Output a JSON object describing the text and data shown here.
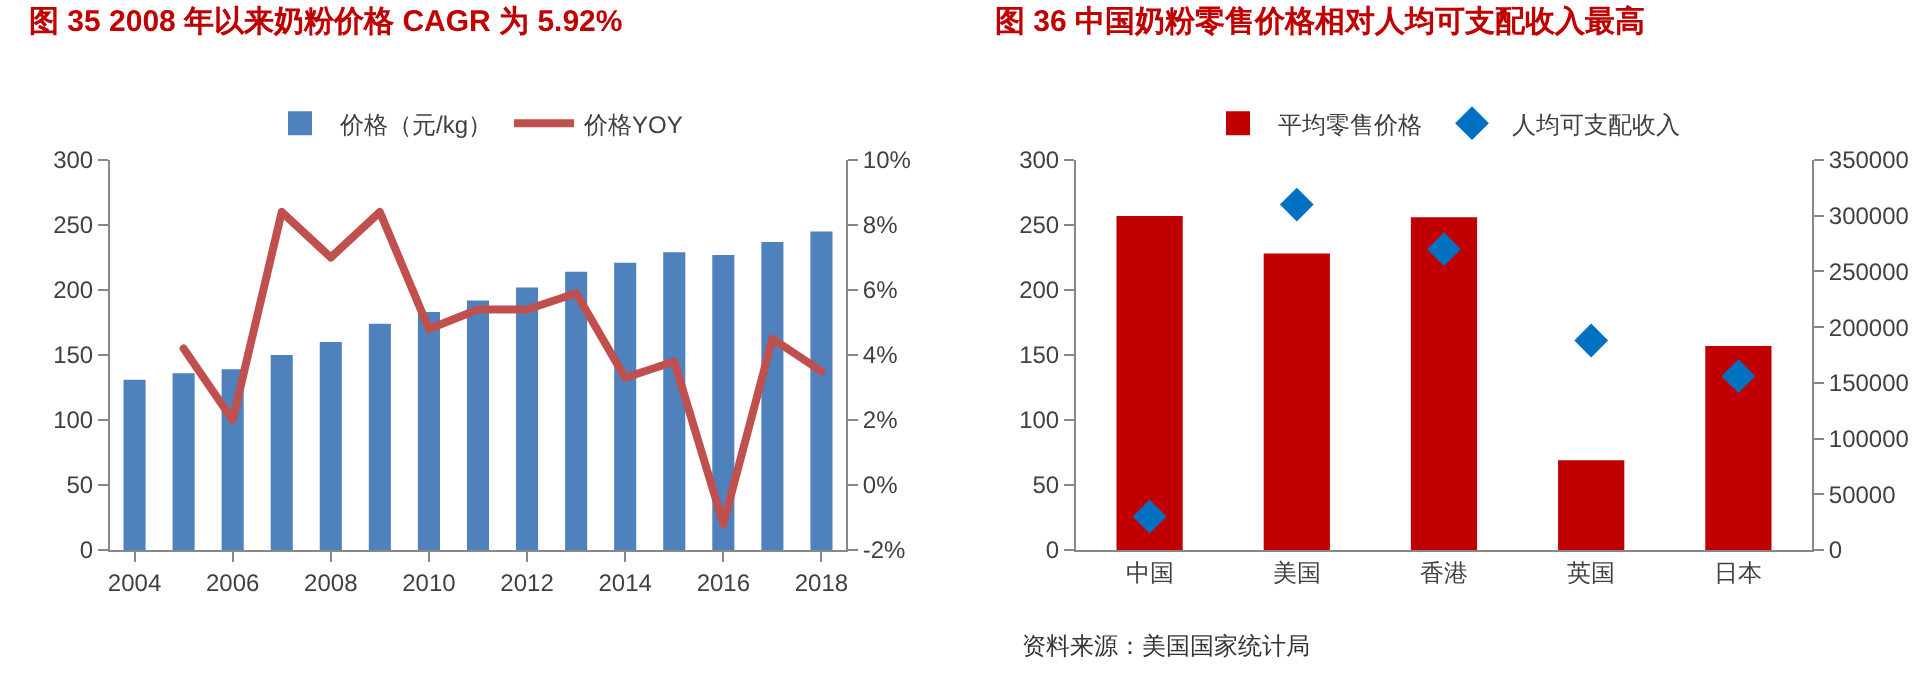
{
  "chart_data": [
    {
      "type": "bar",
      "title": "图 35 2008 年以来奶粉价格 CAGR 为 5.92%",
      "x": [
        2004,
        2005,
        2006,
        2007,
        2008,
        2009,
        2010,
        2011,
        2012,
        2013,
        2014,
        2015,
        2016,
        2017,
        2018
      ],
      "xlim": [
        2003.5,
        2018.5
      ],
      "xticks": [
        2004,
        2006,
        2008,
        2010,
        2012,
        2014,
        2016,
        2018
      ],
      "ylim": [
        0,
        300
      ],
      "yticks": [
        0,
        50,
        100,
        150,
        200,
        250,
        300
      ],
      "y2lim": [
        -2,
        10
      ],
      "y2ticks": [
        {
          "value": -2,
          "label": "-2%"
        },
        {
          "value": 0,
          "label": "0%"
        },
        {
          "value": 2,
          "label": "2%"
        },
        {
          "value": 4,
          "label": "4%"
        },
        {
          "value": 6,
          "label": "6%"
        },
        {
          "value": 8,
          "label": "8%"
        },
        {
          "value": 10,
          "label": "10%"
        }
      ],
      "grid": false,
      "legend": "top",
      "series": [
        {
          "name": "价格（元/kg）",
          "color": "#4f81bd",
          "values": [
            131,
            136,
            139,
            150,
            160,
            174,
            183,
            192,
            202,
            214,
            221,
            229,
            227,
            237,
            245
          ]
        },
        {
          "name": "价格YOY",
          "type": "line",
          "axis": "y2",
          "color": "#c0504d",
          "x": [
            2005,
            2006,
            2007,
            2008,
            2009,
            2010,
            2011,
            2012,
            2013,
            2014,
            2015,
            2016,
            2017,
            2018
          ],
          "values": [
            4.2,
            2.0,
            8.4,
            7.0,
            8.4,
            4.8,
            5.4,
            5.4,
            5.9,
            3.3,
            3.8,
            -1.2,
            4.5,
            3.5
          ]
        }
      ]
    },
    {
      "type": "bar",
      "title": "图 36 中国奶粉零售价格相对人均可支配收入最高",
      "categories": [
        "中国",
        "美国",
        "香港",
        "英国",
        "日本"
      ],
      "ylim": [
        0,
        300
      ],
      "yticks": [
        0,
        50,
        100,
        150,
        200,
        250,
        300
      ],
      "y2lim": [
        0,
        350000
      ],
      "y2ticks": [
        0,
        50000,
        100000,
        150000,
        200000,
        250000,
        300000,
        350000
      ],
      "grid": false,
      "legend": "top",
      "annotations": [
        "资料来源：美国国家统计局"
      ],
      "series": [
        {
          "name": "平均零售价格",
          "color": "#c00000",
          "values": [
            257,
            228,
            256,
            69,
            157
          ]
        },
        {
          "name": "人均可支配收入",
          "type": "scatter",
          "axis": "y2",
          "marker": "diamond",
          "color": "#0070c0",
          "values": [
            30000,
            310000,
            270000,
            188000,
            156000
          ]
        }
      ]
    }
  ]
}
